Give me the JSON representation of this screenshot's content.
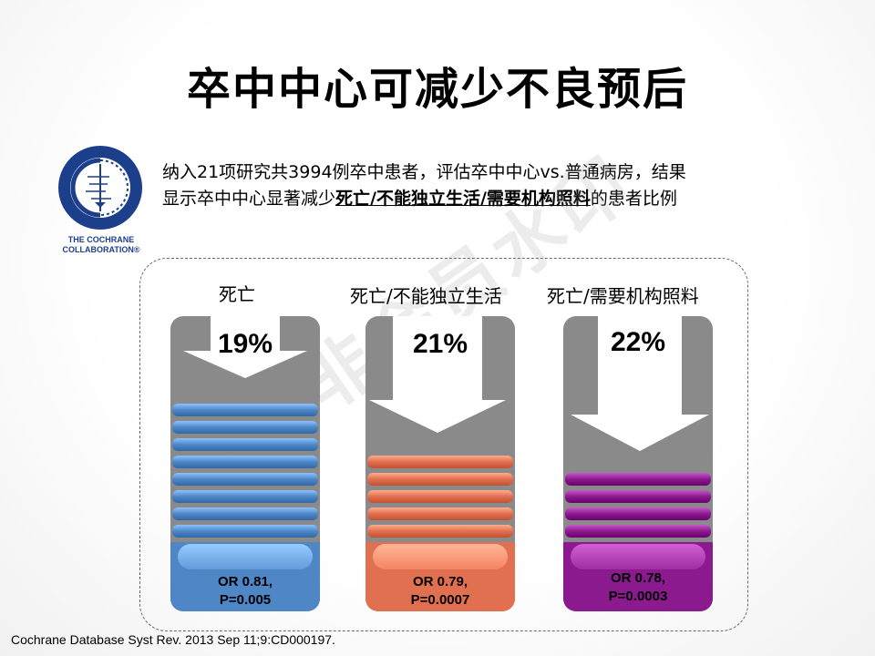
{
  "title": "卒中中心可减少不良预后",
  "logo": {
    "line1": "THE COCHRANE",
    "line2": "COLLABORATION®"
  },
  "intro": {
    "line1": "纳入21项研究共3994例卒中患者，评估卒中中心vs.普通病房，结果",
    "line2_pre": "显示卒中中心显著减少",
    "line2_bold": "死亡/不能独立生活/需要机构照料",
    "line2_post": "的患者比例"
  },
  "columns": [
    {
      "label": "死亡",
      "percent": "19%",
      "or_line1": "OR 0.81,",
      "or_line2": "P=0.005",
      "color": "#4f86c6",
      "stripe_count": 8
    },
    {
      "label": "死亡/不能独立生活",
      "percent": "21%",
      "or_line1": "OR 0.79,",
      "or_line2": "P=0.0007",
      "color": "#e07050",
      "stripe_count": 5
    },
    {
      "label": "死亡/需要机构照料",
      "percent": "22%",
      "or_line1": "OR 0.78,",
      "or_line2": "P=0.0003",
      "color": "#8a1a8e",
      "stripe_count": 4
    }
  ],
  "watermark": "非会员水印",
  "citation": "Cochrane Database Syst Rev. 2013 Sep 11;9:CD000197."
}
